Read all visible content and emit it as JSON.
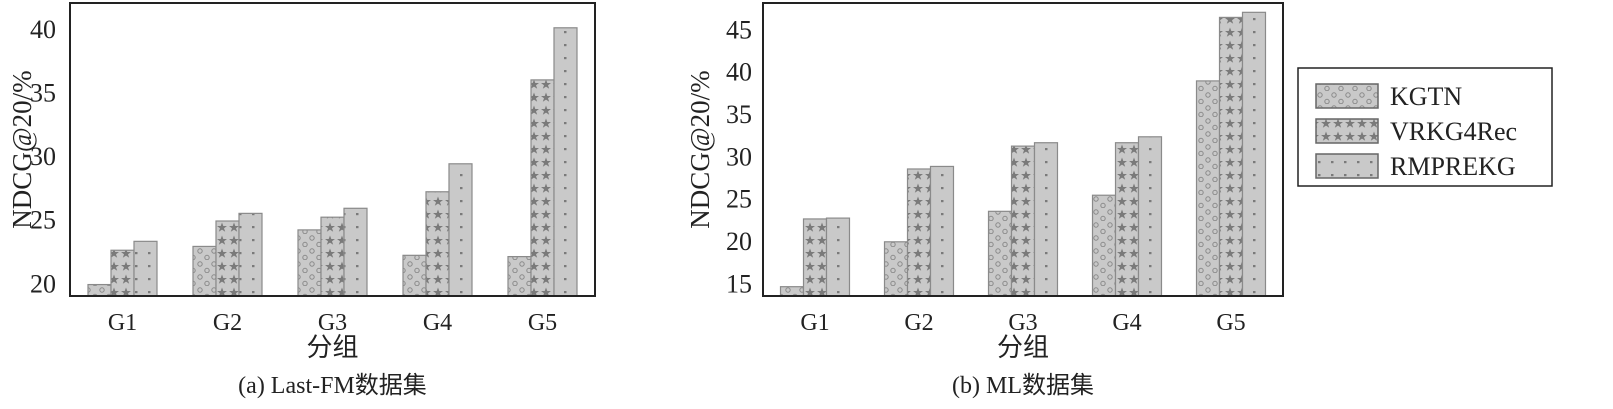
{
  "legend": {
    "entries": [
      "KGTN",
      "VRKG4Rec",
      "RMPREKG"
    ],
    "placement": "right"
  },
  "colors": {
    "bar_fill": "#c9c9c9",
    "bar_stroke": "#8a8a8a",
    "pattern": "#7a7a7a",
    "axis": "#222222"
  },
  "chart_data": [
    {
      "type": "bar",
      "title": "(a) Last-FM数据集",
      "xlabel": "分组",
      "ylabel": "NDCG@20/%",
      "categories": [
        "G1",
        "G2",
        "G3",
        "G4",
        "G5"
      ],
      "ylim": [
        19.0,
        42.05
      ],
      "yticks": [
        20,
        25,
        30,
        35,
        40
      ],
      "series": [
        {
          "name": "KGTN",
          "pattern": "circles",
          "values": [
            19.9,
            22.9,
            24.2,
            22.2,
            22.1
          ]
        },
        {
          "name": "VRKG4Rec",
          "pattern": "stars",
          "values": [
            22.6,
            24.9,
            25.2,
            27.2,
            36.0
          ]
        },
        {
          "name": "RMPREKG",
          "pattern": "dots",
          "values": [
            23.3,
            25.5,
            25.9,
            29.4,
            40.1
          ]
        }
      ]
    },
    {
      "type": "bar",
      "title": "(b) ML数据集",
      "xlabel": "分组",
      "ylabel": "NDCG@20/%",
      "categories": [
        "G1",
        "G2",
        "G3",
        "G4",
        "G5"
      ],
      "ylim": [
        13.5,
        48.1
      ],
      "yticks": [
        15,
        20,
        25,
        30,
        35,
        40,
        45
      ],
      "series": [
        {
          "name": "KGTN",
          "pattern": "circles",
          "values": [
            14.6,
            19.9,
            23.5,
            25.4,
            38.9
          ]
        },
        {
          "name": "VRKG4Rec",
          "pattern": "stars",
          "values": [
            22.6,
            28.5,
            31.2,
            31.6,
            46.4
          ]
        },
        {
          "name": "RMPREKG",
          "pattern": "dots",
          "values": [
            22.7,
            28.8,
            31.6,
            32.3,
            47.0
          ]
        }
      ]
    }
  ]
}
